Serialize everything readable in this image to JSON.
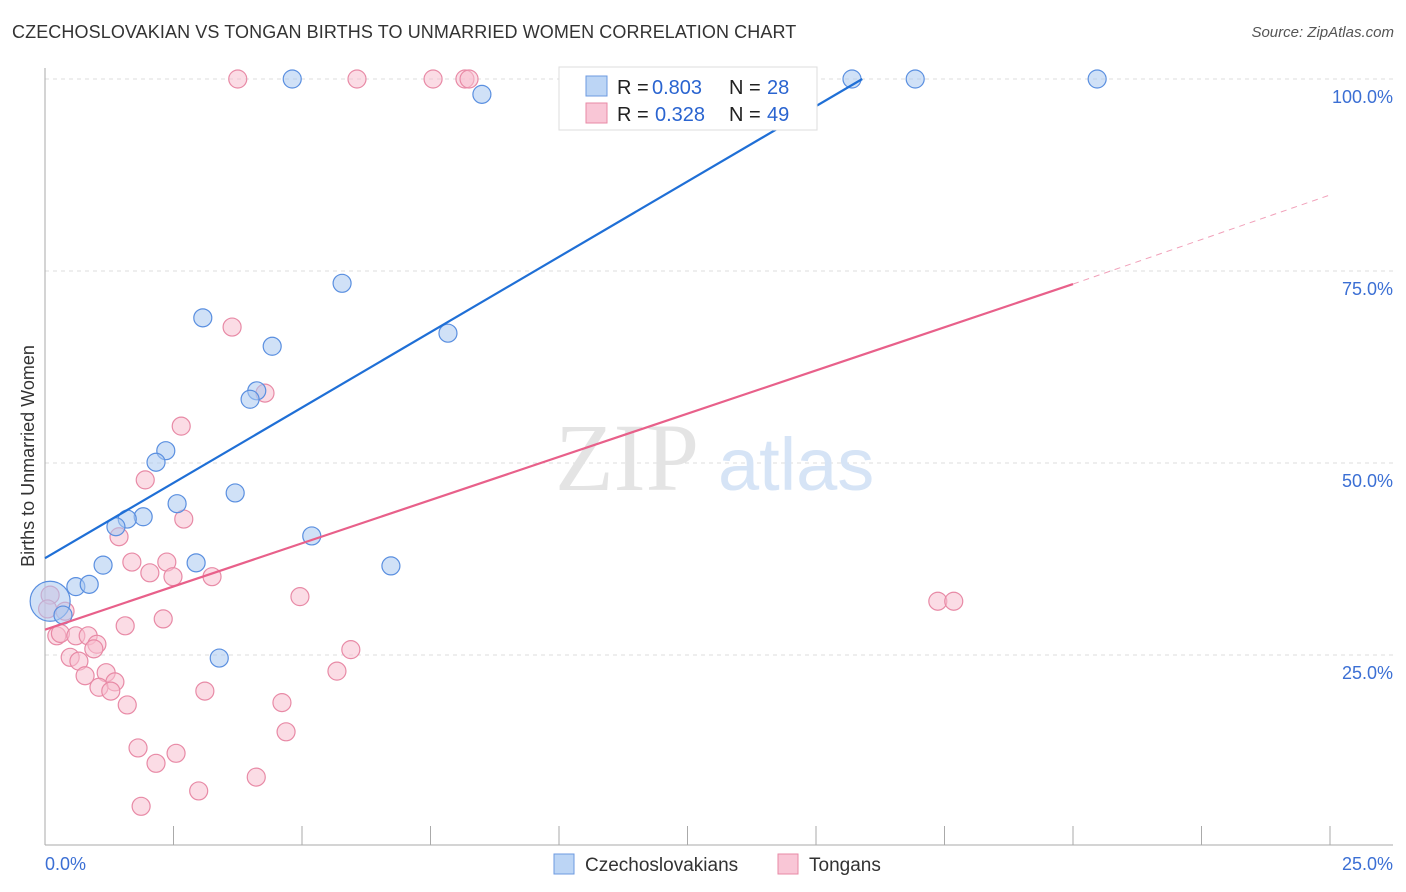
{
  "title": "CZECHOSLOVAKIAN VS TONGAN BIRTHS TO UNMARRIED WOMEN CORRELATION CHART",
  "source": "Source: ZipAtlas.com",
  "watermark": {
    "zip": "ZIP",
    "atlas": "atlas"
  },
  "colors": {
    "blue_line": "#1f6fd6",
    "blue_fill": "#a9c8f0",
    "blue_stroke": "#5a8fe0",
    "pink_line": "#e8608a",
    "pink_fill": "#f7bfd0",
    "pink_stroke": "#e88aa6",
    "tick": "#3b6fd4"
  },
  "chart_data": {
    "type": "scatter",
    "title": "CZECHOSLOVAKIAN VS TONGAN BIRTHS TO UNMARRIED WOMEN CORRELATION CHART",
    "xlabel": "",
    "ylabel": "Births to Unmarried Women",
    "xlim": [
      0,
      25
    ],
    "ylim": [
      0,
      100
    ],
    "x_tick_labels": [
      "0.0%",
      "25.0%"
    ],
    "y_ticks": [
      25,
      50,
      75,
      100
    ],
    "y_tick_labels": [
      "25.0%",
      "50.0%",
      "75.0%",
      "100.0%"
    ],
    "grid": true,
    "legend_placement": "top-center",
    "legend": [
      {
        "name": "Czechoslovakians",
        "r_label": "R =",
        "r": "0.803",
        "n_label": "N =",
        "n": "28"
      },
      {
        "name": "Tongans",
        "r_label": "R =",
        "r": "0.328",
        "n_label": "N =",
        "n": "49"
      }
    ],
    "series": [
      {
        "name": "Czechoslovakians",
        "trend": {
          "x0": 0,
          "y0": 37.6,
          "x1": 15.9,
          "y1": 100
        },
        "points": [
          [
            4.81,
            100
          ],
          [
            11.38,
            100
          ],
          [
            15.7,
            100
          ],
          [
            16.93,
            100
          ],
          [
            20.47,
            100
          ],
          [
            8.5,
            98
          ],
          [
            5.78,
            73.4
          ],
          [
            3.07,
            68.9
          ],
          [
            7.84,
            66.9
          ],
          [
            4.42,
            65.2
          ],
          [
            4.12,
            59.4
          ],
          [
            3.99,
            58.3
          ],
          [
            2.35,
            51.6
          ],
          [
            2.16,
            50.1
          ],
          [
            3.7,
            46.1
          ],
          [
            2.57,
            44.7
          ],
          [
            1.91,
            43.0
          ],
          [
            1.6,
            42.7
          ],
          [
            1.38,
            41.7
          ],
          [
            5.19,
            40.5
          ],
          [
            1.13,
            36.7
          ],
          [
            2.94,
            37.0
          ],
          [
            6.73,
            36.6
          ],
          [
            0.6,
            33.9
          ],
          [
            0.86,
            34.2
          ],
          [
            0.1,
            32.0,
            "big"
          ],
          [
            0.35,
            30.2
          ],
          [
            3.39,
            24.6
          ]
        ]
      },
      {
        "name": "Tongans",
        "trend": {
          "x0": 0,
          "y0": 28.3,
          "x1": 20,
          "y1": 73.3,
          "dash_x1": 25,
          "dash_y1": 84.9
        },
        "points": [
          [
            3.75,
            100
          ],
          [
            6.07,
            100
          ],
          [
            7.55,
            100
          ],
          [
            8.17,
            100
          ],
          [
            8.25,
            100
          ],
          [
            3.64,
            67.7
          ],
          [
            2.65,
            54.8
          ],
          [
            4.28,
            59.1
          ],
          [
            1.95,
            47.8
          ],
          [
            2.7,
            42.7
          ],
          [
            1.44,
            40.4
          ],
          [
            1.69,
            37.1
          ],
          [
            2.37,
            37.1
          ],
          [
            2.04,
            35.7
          ],
          [
            2.49,
            35.2
          ],
          [
            3.25,
            35.2
          ],
          [
            4.96,
            32.6
          ],
          [
            17.37,
            32.0
          ],
          [
            17.68,
            32.0
          ],
          [
            0.39,
            30.7
          ],
          [
            0.1,
            32.8
          ],
          [
            0.05,
            31.0
          ],
          [
            2.3,
            29.7
          ],
          [
            1.56,
            28.8
          ],
          [
            0.23,
            27.5
          ],
          [
            0.3,
            27.8
          ],
          [
            0.6,
            27.5
          ],
          [
            0.84,
            27.5
          ],
          [
            1.01,
            26.4
          ],
          [
            0.95,
            25.8
          ],
          [
            0.49,
            24.7
          ],
          [
            0.66,
            24.2
          ],
          [
            0.78,
            22.3
          ],
          [
            1.19,
            22.7
          ],
          [
            1.36,
            21.5
          ],
          [
            1.05,
            20.8
          ],
          [
            1.28,
            20.3
          ],
          [
            1.6,
            18.5
          ],
          [
            3.11,
            20.3
          ],
          [
            4.61,
            18.8
          ],
          [
            4.69,
            15.0
          ],
          [
            5.95,
            25.7
          ],
          [
            5.68,
            22.9
          ],
          [
            1.81,
            12.9
          ],
          [
            2.16,
            10.9
          ],
          [
            2.55,
            12.2
          ],
          [
            4.11,
            9.1
          ],
          [
            2.99,
            7.3
          ],
          [
            1.87,
            5.3
          ]
        ]
      }
    ]
  }
}
